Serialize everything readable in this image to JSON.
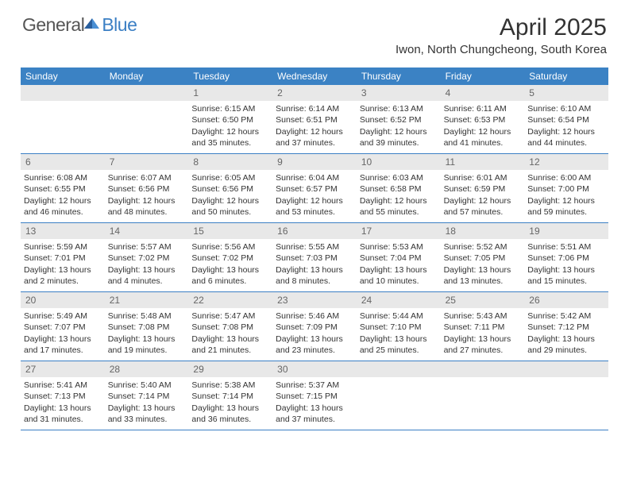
{
  "logo": {
    "general": "General",
    "blue": "Blue"
  },
  "title": "April 2025",
  "location": "Iwon, North Chungcheong, South Korea",
  "colors": {
    "header_blue": "#3b82c4",
    "border_blue": "#3b7fc4",
    "daynum_bg": "#e8e8e8"
  },
  "day_names": [
    "Sunday",
    "Monday",
    "Tuesday",
    "Wednesday",
    "Thursday",
    "Friday",
    "Saturday"
  ],
  "weeks": [
    [
      {
        "empty": true
      },
      {
        "empty": true
      },
      {
        "n": "1",
        "sr": "Sunrise: 6:15 AM",
        "ss": "Sunset: 6:50 PM",
        "d1": "Daylight: 12 hours",
        "d2": "and 35 minutes."
      },
      {
        "n": "2",
        "sr": "Sunrise: 6:14 AM",
        "ss": "Sunset: 6:51 PM",
        "d1": "Daylight: 12 hours",
        "d2": "and 37 minutes."
      },
      {
        "n": "3",
        "sr": "Sunrise: 6:13 AM",
        "ss": "Sunset: 6:52 PM",
        "d1": "Daylight: 12 hours",
        "d2": "and 39 minutes."
      },
      {
        "n": "4",
        "sr": "Sunrise: 6:11 AM",
        "ss": "Sunset: 6:53 PM",
        "d1": "Daylight: 12 hours",
        "d2": "and 41 minutes."
      },
      {
        "n": "5",
        "sr": "Sunrise: 6:10 AM",
        "ss": "Sunset: 6:54 PM",
        "d1": "Daylight: 12 hours",
        "d2": "and 44 minutes."
      }
    ],
    [
      {
        "n": "6",
        "sr": "Sunrise: 6:08 AM",
        "ss": "Sunset: 6:55 PM",
        "d1": "Daylight: 12 hours",
        "d2": "and 46 minutes."
      },
      {
        "n": "7",
        "sr": "Sunrise: 6:07 AM",
        "ss": "Sunset: 6:56 PM",
        "d1": "Daylight: 12 hours",
        "d2": "and 48 minutes."
      },
      {
        "n": "8",
        "sr": "Sunrise: 6:05 AM",
        "ss": "Sunset: 6:56 PM",
        "d1": "Daylight: 12 hours",
        "d2": "and 50 minutes."
      },
      {
        "n": "9",
        "sr": "Sunrise: 6:04 AM",
        "ss": "Sunset: 6:57 PM",
        "d1": "Daylight: 12 hours",
        "d2": "and 53 minutes."
      },
      {
        "n": "10",
        "sr": "Sunrise: 6:03 AM",
        "ss": "Sunset: 6:58 PM",
        "d1": "Daylight: 12 hours",
        "d2": "and 55 minutes."
      },
      {
        "n": "11",
        "sr": "Sunrise: 6:01 AM",
        "ss": "Sunset: 6:59 PM",
        "d1": "Daylight: 12 hours",
        "d2": "and 57 minutes."
      },
      {
        "n": "12",
        "sr": "Sunrise: 6:00 AM",
        "ss": "Sunset: 7:00 PM",
        "d1": "Daylight: 12 hours",
        "d2": "and 59 minutes."
      }
    ],
    [
      {
        "n": "13",
        "sr": "Sunrise: 5:59 AM",
        "ss": "Sunset: 7:01 PM",
        "d1": "Daylight: 13 hours",
        "d2": "and 2 minutes."
      },
      {
        "n": "14",
        "sr": "Sunrise: 5:57 AM",
        "ss": "Sunset: 7:02 PM",
        "d1": "Daylight: 13 hours",
        "d2": "and 4 minutes."
      },
      {
        "n": "15",
        "sr": "Sunrise: 5:56 AM",
        "ss": "Sunset: 7:02 PM",
        "d1": "Daylight: 13 hours",
        "d2": "and 6 minutes."
      },
      {
        "n": "16",
        "sr": "Sunrise: 5:55 AM",
        "ss": "Sunset: 7:03 PM",
        "d1": "Daylight: 13 hours",
        "d2": "and 8 minutes."
      },
      {
        "n": "17",
        "sr": "Sunrise: 5:53 AM",
        "ss": "Sunset: 7:04 PM",
        "d1": "Daylight: 13 hours",
        "d2": "and 10 minutes."
      },
      {
        "n": "18",
        "sr": "Sunrise: 5:52 AM",
        "ss": "Sunset: 7:05 PM",
        "d1": "Daylight: 13 hours",
        "d2": "and 13 minutes."
      },
      {
        "n": "19",
        "sr": "Sunrise: 5:51 AM",
        "ss": "Sunset: 7:06 PM",
        "d1": "Daylight: 13 hours",
        "d2": "and 15 minutes."
      }
    ],
    [
      {
        "n": "20",
        "sr": "Sunrise: 5:49 AM",
        "ss": "Sunset: 7:07 PM",
        "d1": "Daylight: 13 hours",
        "d2": "and 17 minutes."
      },
      {
        "n": "21",
        "sr": "Sunrise: 5:48 AM",
        "ss": "Sunset: 7:08 PM",
        "d1": "Daylight: 13 hours",
        "d2": "and 19 minutes."
      },
      {
        "n": "22",
        "sr": "Sunrise: 5:47 AM",
        "ss": "Sunset: 7:08 PM",
        "d1": "Daylight: 13 hours",
        "d2": "and 21 minutes."
      },
      {
        "n": "23",
        "sr": "Sunrise: 5:46 AM",
        "ss": "Sunset: 7:09 PM",
        "d1": "Daylight: 13 hours",
        "d2": "and 23 minutes."
      },
      {
        "n": "24",
        "sr": "Sunrise: 5:44 AM",
        "ss": "Sunset: 7:10 PM",
        "d1": "Daylight: 13 hours",
        "d2": "and 25 minutes."
      },
      {
        "n": "25",
        "sr": "Sunrise: 5:43 AM",
        "ss": "Sunset: 7:11 PM",
        "d1": "Daylight: 13 hours",
        "d2": "and 27 minutes."
      },
      {
        "n": "26",
        "sr": "Sunrise: 5:42 AM",
        "ss": "Sunset: 7:12 PM",
        "d1": "Daylight: 13 hours",
        "d2": "and 29 minutes."
      }
    ],
    [
      {
        "n": "27",
        "sr": "Sunrise: 5:41 AM",
        "ss": "Sunset: 7:13 PM",
        "d1": "Daylight: 13 hours",
        "d2": "and 31 minutes."
      },
      {
        "n": "28",
        "sr": "Sunrise: 5:40 AM",
        "ss": "Sunset: 7:14 PM",
        "d1": "Daylight: 13 hours",
        "d2": "and 33 minutes."
      },
      {
        "n": "29",
        "sr": "Sunrise: 5:38 AM",
        "ss": "Sunset: 7:14 PM",
        "d1": "Daylight: 13 hours",
        "d2": "and 36 minutes."
      },
      {
        "n": "30",
        "sr": "Sunrise: 5:37 AM",
        "ss": "Sunset: 7:15 PM",
        "d1": "Daylight: 13 hours",
        "d2": "and 37 minutes."
      },
      {
        "empty": true
      },
      {
        "empty": true
      },
      {
        "empty": true
      }
    ]
  ]
}
